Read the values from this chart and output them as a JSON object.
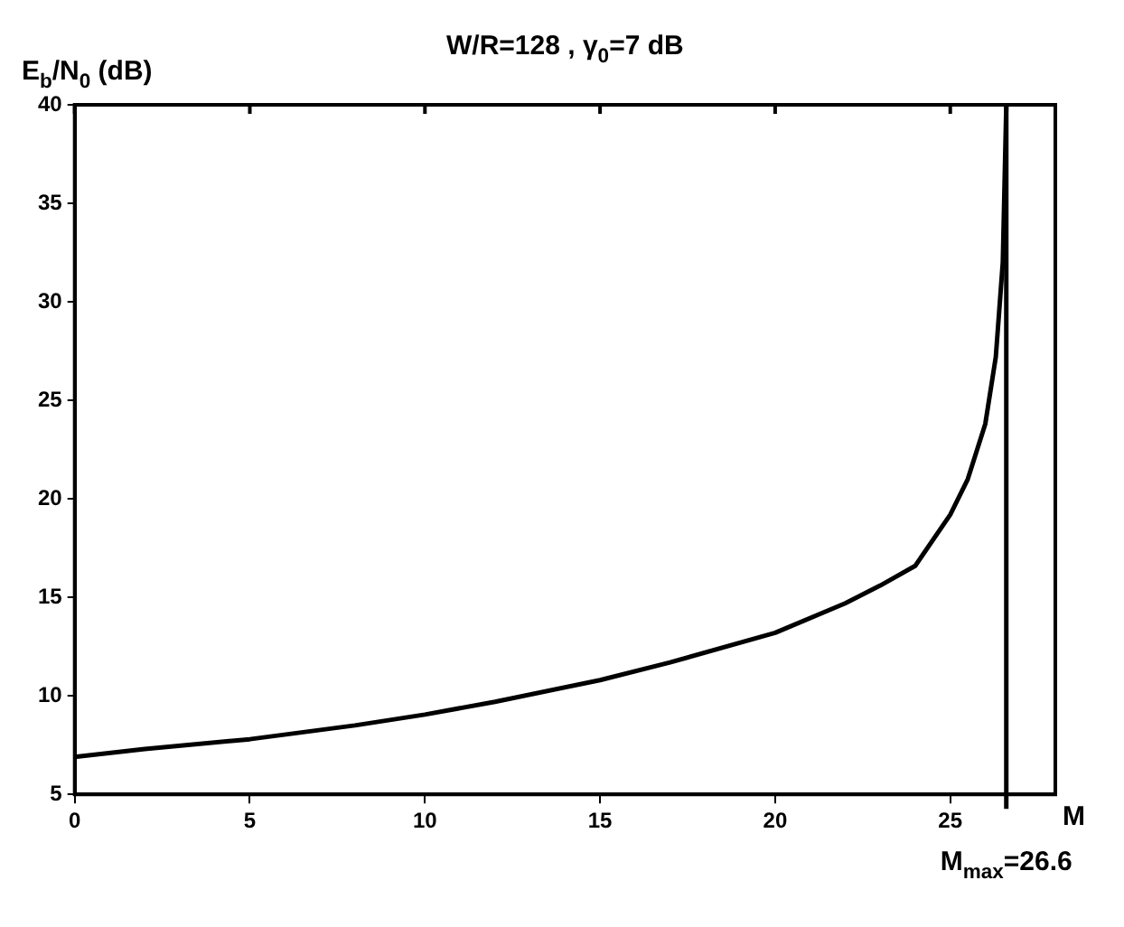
{
  "chart_data": {
    "type": "line",
    "title": "W/R=128 , γ$_{0}$=7 dB",
    "xlabel": "M",
    "ylabel": "E$_{b}$/N$_{0}$ (dB)",
    "series": [
      {
        "color": "#000000",
        "x": [
          0,
          2,
          5,
          8,
          10,
          12,
          15,
          17,
          20,
          22,
          23,
          24,
          25,
          25.5,
          26,
          26.3,
          26.5,
          26.6
        ],
        "values": [
          6.9,
          7.3,
          7.8,
          8.5,
          9.05,
          9.7,
          10.8,
          11.7,
          13.2,
          14.7,
          15.6,
          16.6,
          19.2,
          21,
          23.8,
          27.2,
          32,
          40
        ]
      }
    ],
    "xlim": [
      0,
      28
    ],
    "xticks": [
      0,
      5,
      10,
      15,
      20,
      25
    ],
    "ylim": [
      5,
      40
    ],
    "yticks": [
      5,
      10,
      15,
      20,
      25,
      30,
      35,
      40
    ],
    "ref_lines": [
      {
        "axis": "x",
        "value": 26.6,
        "label": "M$_{max}$=26.6",
        "color": "#000000"
      }
    ],
    "grid": false,
    "legend": false,
    "marker": "none",
    "line_style": "solid"
  }
}
